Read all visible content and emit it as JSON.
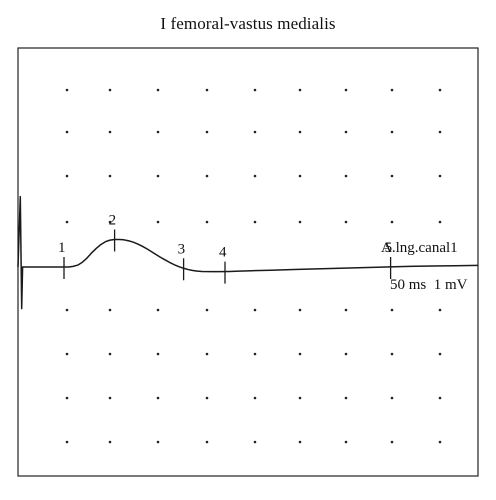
{
  "chart_data": {
    "type": "line",
    "title": "I femoral-vastus medialis",
    "xlabel": "",
    "ylabel": "",
    "grid": "dotted",
    "channel_label": "A.lng.canal1",
    "scale_label": "50 ms  1 mV",
    "divisions": {
      "x": 10,
      "y": 10
    },
    "series": [
      {
        "x": [
          0,
          0.05,
          0.08,
          0.1,
          0.15,
          0.3,
          0.6,
          0.8,
          1.0,
          1.1,
          1.2,
          1.3,
          1.4,
          1.5,
          1.6,
          1.7,
          1.8,
          1.9,
          2.0,
          2.1,
          2.2,
          2.3,
          2.4,
          2.5,
          2.6,
          2.7,
          2.8,
          2.9,
          3.0,
          3.1,
          3.2,
          3.3,
          3.4,
          3.5,
          3.6,
          3.7,
          3.8,
          3.9,
          4.0,
          4.2,
          4.4,
          4.6,
          4.8,
          5.0,
          5.5,
          6.0,
          6.5,
          7.0,
          7.5,
          8.0,
          8.5,
          9.0,
          9.5,
          10.0
        ],
        "values": [
          0.0,
          2.2,
          -1.3,
          0.0,
          0.0,
          0.0,
          0.0,
          0.0,
          0.0,
          0.0,
          0.02,
          0.06,
          0.15,
          0.28,
          0.44,
          0.58,
          0.7,
          0.79,
          0.84,
          0.86,
          0.86,
          0.85,
          0.82,
          0.78,
          0.72,
          0.65,
          0.57,
          0.48,
          0.39,
          0.3,
          0.22,
          0.14,
          0.07,
          0.01,
          -0.04,
          -0.08,
          -0.11,
          -0.13,
          -0.14,
          -0.145,
          -0.145,
          -0.14,
          -0.13,
          -0.12,
          -0.1,
          -0.08,
          -0.06,
          -0.04,
          -0.02,
          0.0,
          0.02,
          0.03,
          0.04,
          0.05
        ]
      }
    ],
    "markers": [
      {
        "label": "1",
        "x": 1.0,
        "y": 0.0
      },
      {
        "label": "2",
        "x": 2.1,
        "y": 0.86
      },
      {
        "label": "3",
        "x": 3.6,
        "y": -0.04
      },
      {
        "label": "4",
        "x": 4.5,
        "y": -0.145
      },
      {
        "label": "5",
        "x": 8.1,
        "y": 0.0
      }
    ]
  }
}
